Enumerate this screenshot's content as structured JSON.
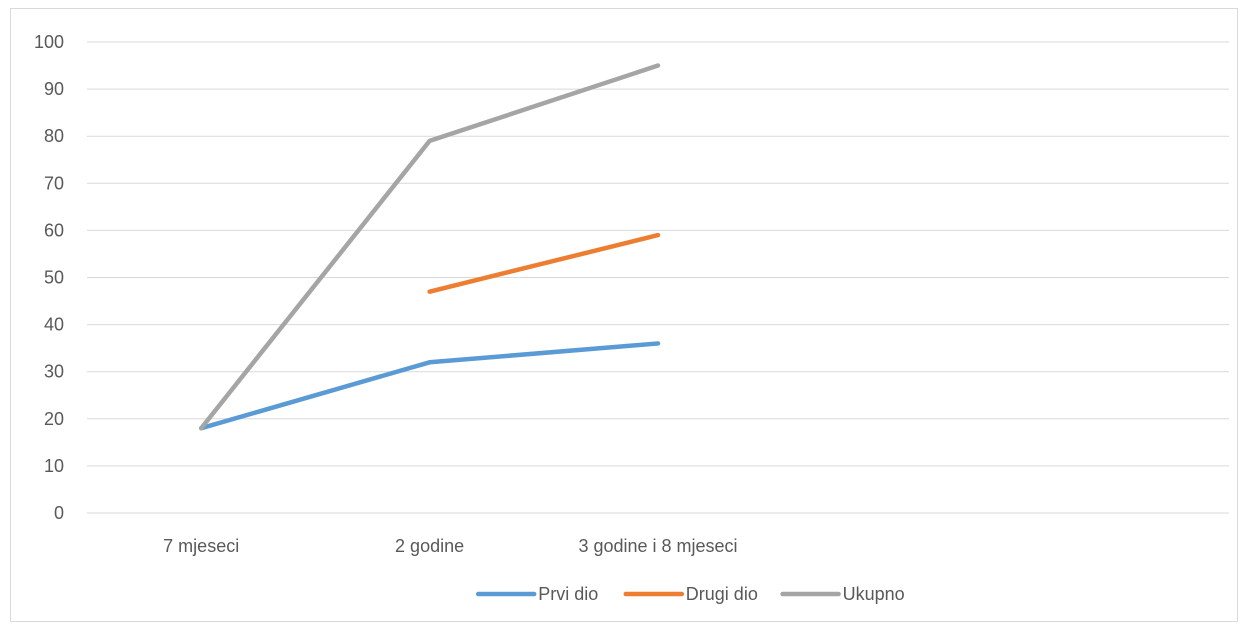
{
  "chart_data": {
    "type": "line",
    "categories": [
      "7 mjeseci",
      "2 godine",
      "3 godine i 8 mjeseci",
      "",
      ""
    ],
    "series": [
      {
        "name": "Prvi dio",
        "color": "#5b9bd5",
        "values": [
          18,
          32,
          36,
          null,
          null
        ]
      },
      {
        "name": "Drugi dio",
        "color": "#ed7d31",
        "values": [
          null,
          47,
          59,
          null,
          null
        ]
      },
      {
        "name": "Ukupno",
        "color": "#a5a5a5",
        "values": [
          18,
          79,
          95,
          null,
          null
        ]
      }
    ],
    "ylim": [
      0,
      100
    ],
    "yticks": [
      0,
      10,
      20,
      30,
      40,
      50,
      60,
      70,
      80,
      90,
      100
    ],
    "grid": true,
    "legend_position": "bottom"
  }
}
